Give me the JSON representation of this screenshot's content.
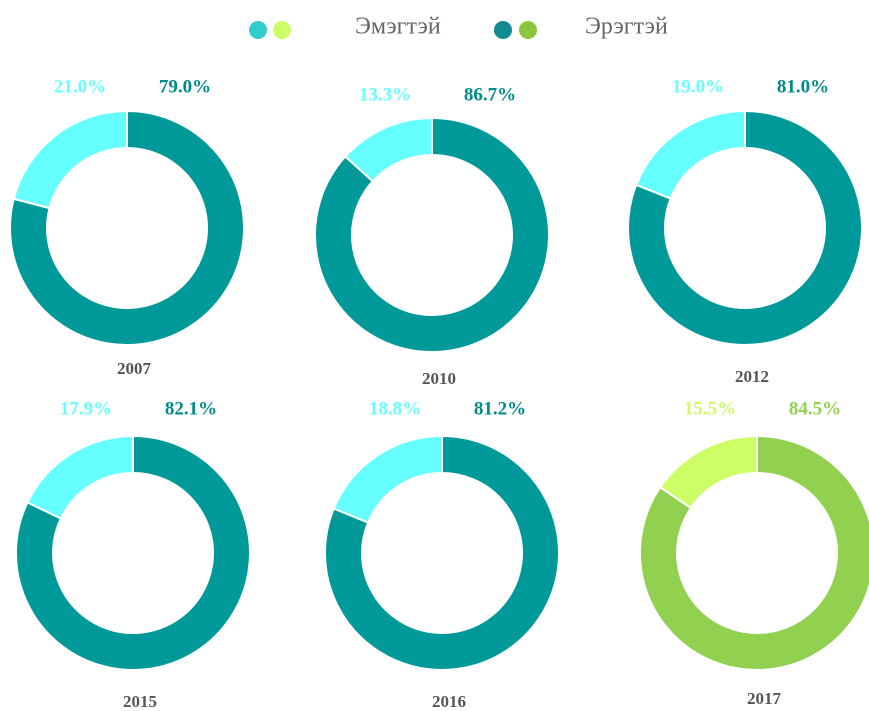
{
  "legend": [
    {
      "name": "Эмэгтэй",
      "colors": [
        "#33cccc",
        "#ccff66"
      ]
    },
    {
      "name": "Эрэгтэй",
      "colors": [
        "#118a91",
        "#8cc63f"
      ]
    }
  ],
  "chart_data": [
    {
      "type": "donut",
      "title": "2007",
      "values": [
        21.0,
        79.0
      ],
      "value_labels": [
        "21.0%",
        "79.0%"
      ],
      "colors": [
        "#66ffff",
        "#009999"
      ]
    },
    {
      "type": "donut",
      "title": "2010",
      "values": [
        13.3,
        86.7
      ],
      "value_labels": [
        "13.3%",
        "86.7%"
      ],
      "colors": [
        "#66ffff",
        "#009999"
      ]
    },
    {
      "type": "donut",
      "title": "2012",
      "values": [
        19.0,
        81.0
      ],
      "value_labels": [
        "19.0%",
        "81.0%"
      ],
      "colors": [
        "#66ffff",
        "#009999"
      ]
    },
    {
      "type": "donut",
      "title": "2015",
      "values": [
        17.9,
        82.1
      ],
      "value_labels": [
        "17.9%",
        "82.1%"
      ],
      "colors": [
        "#66ffff",
        "#009999"
      ]
    },
    {
      "type": "donut",
      "title": "2016",
      "values": [
        18.8,
        81.2
      ],
      "value_labels": [
        "18.8%",
        "81.2%"
      ],
      "colors": [
        "#66ffff",
        "#009999"
      ]
    },
    {
      "type": "donut",
      "title": "2017",
      "values": [
        15.5,
        84.5
      ],
      "value_labels": [
        "15.5%",
        "84.5%"
      ],
      "colors": [
        "#ccff66",
        "#92d050"
      ]
    }
  ]
}
